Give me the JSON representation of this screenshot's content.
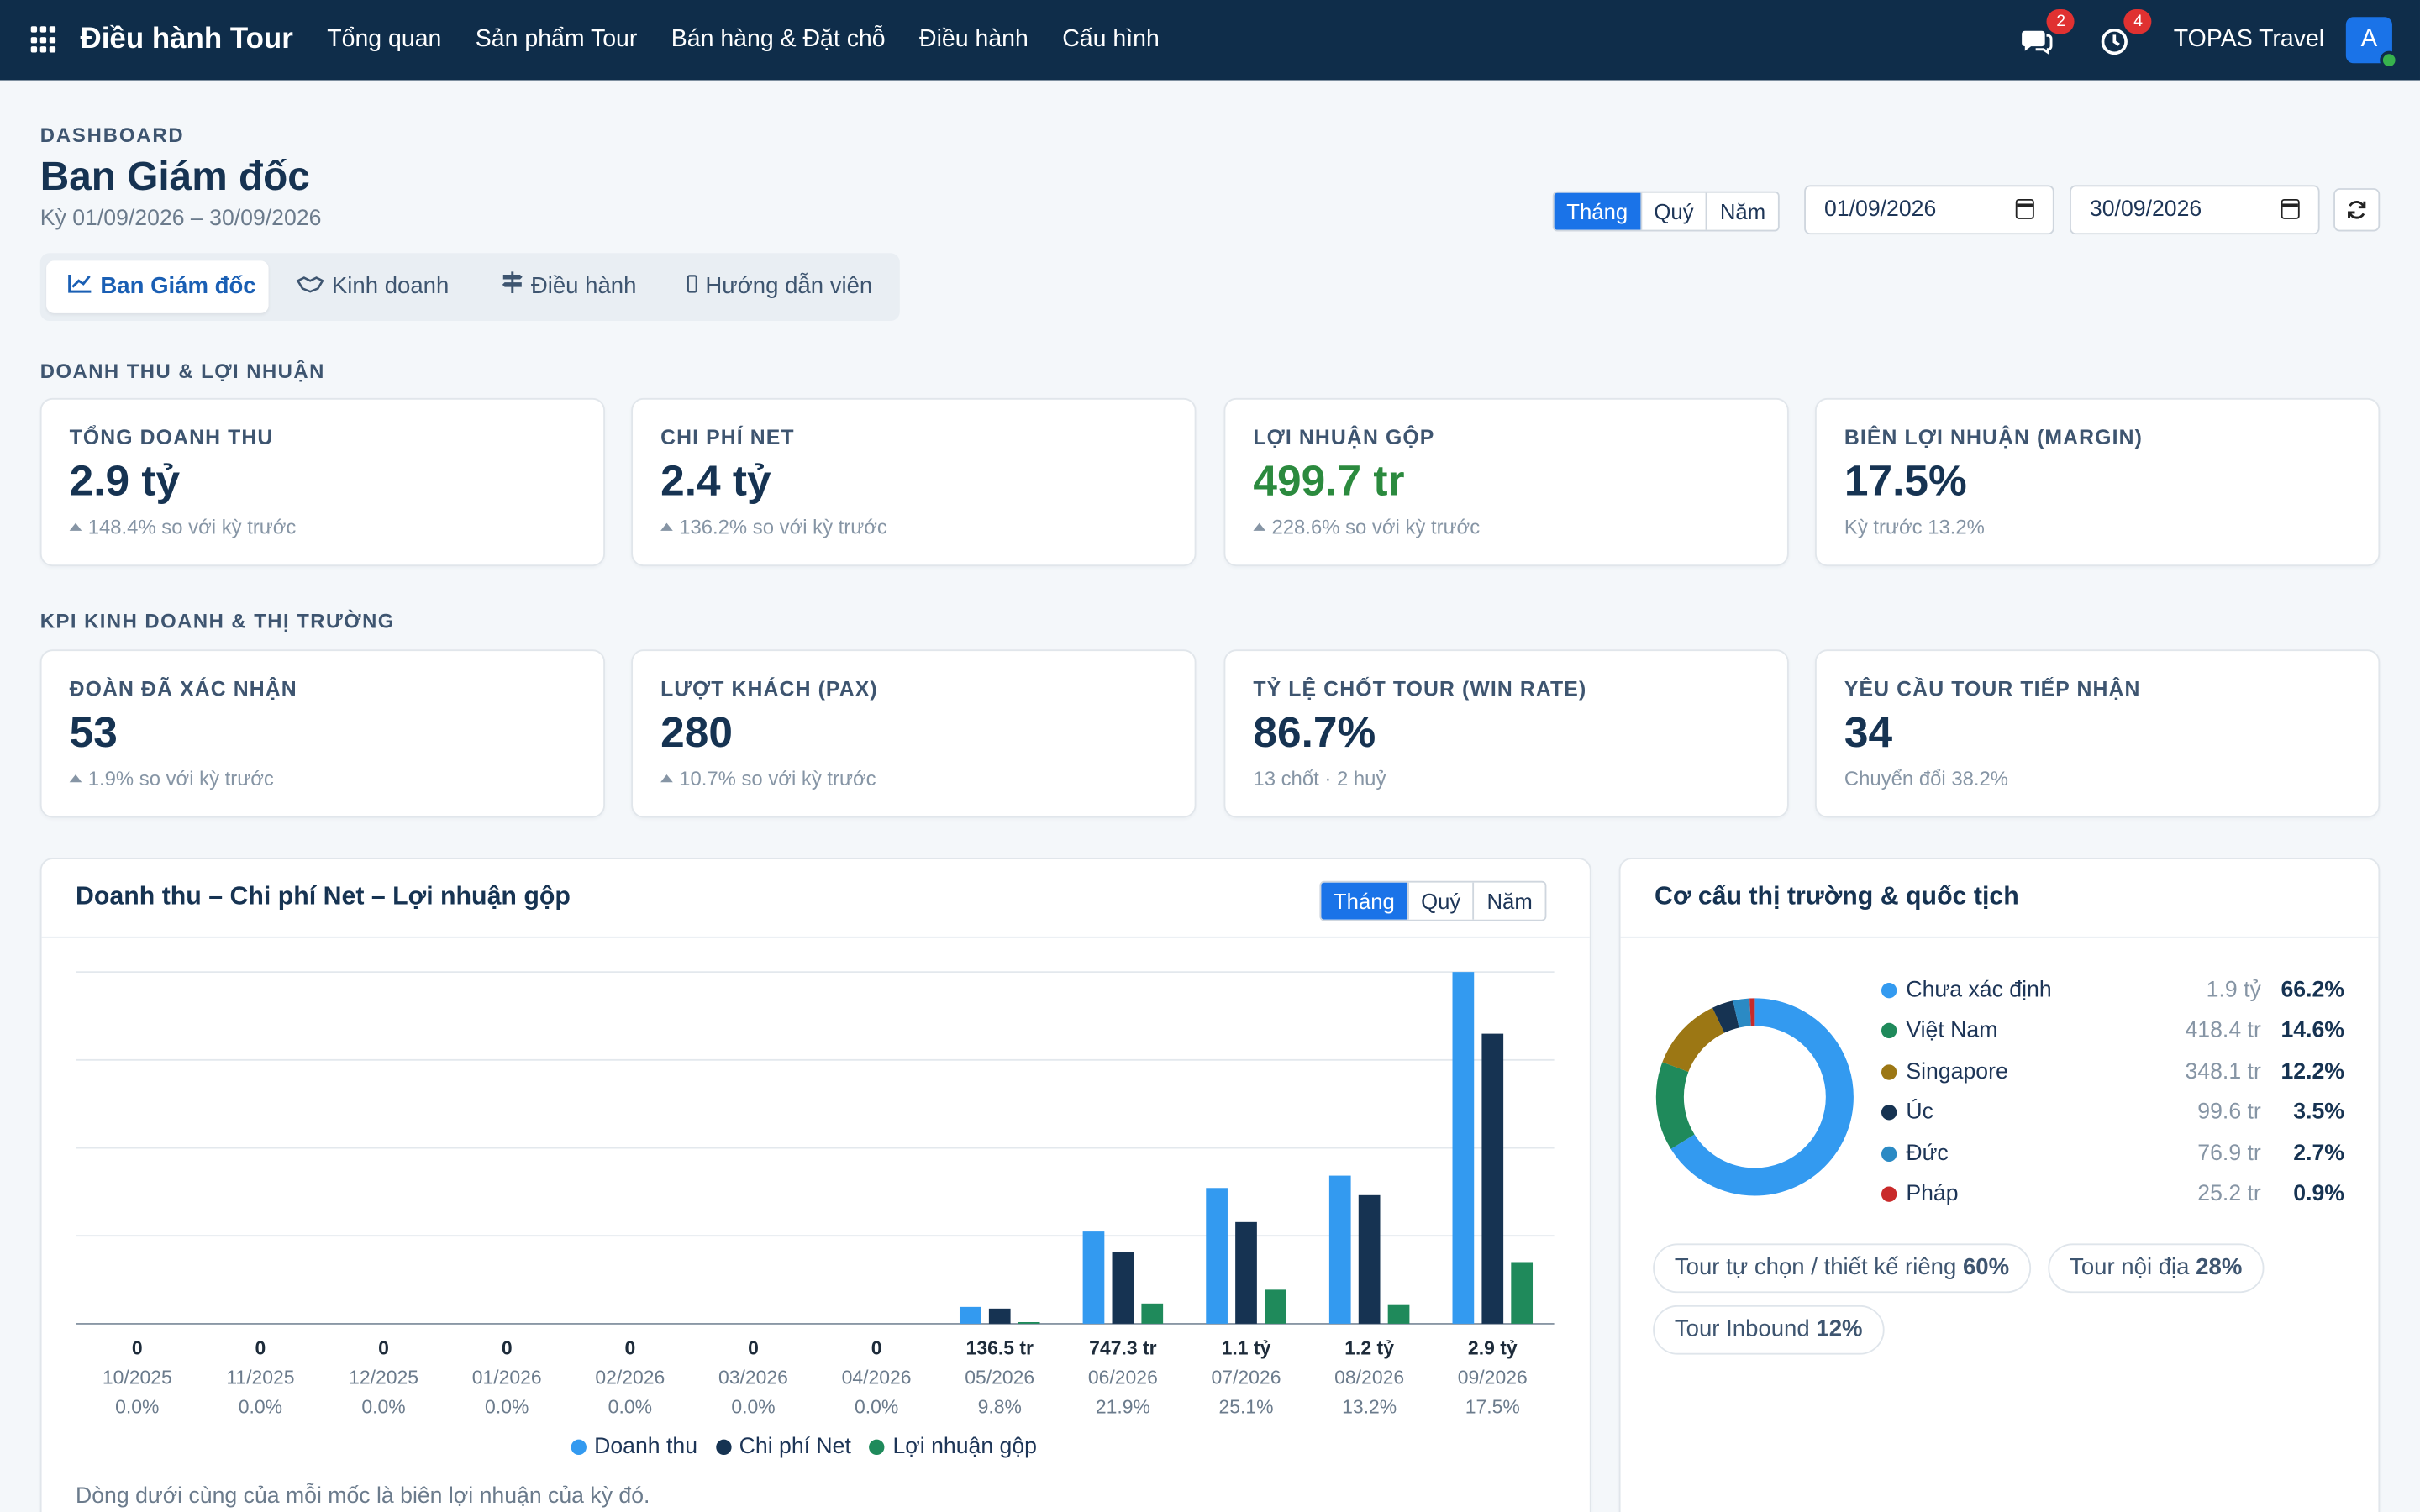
{
  "app": {
    "title": "Điều hành Tour",
    "nav": [
      "Tổng quan",
      "Sản phẩm Tour",
      "Bán hàng & Đặt chỗ",
      "Điều hành",
      "Cấu hình"
    ],
    "chat_badge": "2",
    "activity_badge": "4",
    "company": "TOPAS Travel",
    "avatar_letter": "A"
  },
  "header": {
    "eyebrow": "DASHBOARD",
    "title": "Ban Giám đốc",
    "period": "Kỳ 01/09/2026 – 30/09/2026",
    "granularity": [
      "Tháng",
      "Quý",
      "Năm"
    ],
    "granularity_active": "Tháng",
    "date_from": "01/09/2026",
    "date_to": "30/09/2026"
  },
  "tabs": [
    {
      "label": "Ban Giám đốc",
      "icon": "chart-line-icon"
    },
    {
      "label": "Kinh doanh",
      "icon": "handshake-icon"
    },
    {
      "label": "Điều hành",
      "icon": "signpost-icon"
    },
    {
      "label": "Hướng dẫn viên",
      "icon": "phone-icon"
    }
  ],
  "sections": {
    "revenue": "DOANH THU & LỢI NHUẬN",
    "kpi": "KPI KINH DOANH & THỊ TRƯỜNG"
  },
  "revenue_cards": [
    {
      "label": "TỔNG DOANH THU",
      "value": "2.9 tỷ",
      "sub": "148.4% so với kỳ trước",
      "trend": "up"
    },
    {
      "label": "CHI PHÍ NET",
      "value": "2.4 tỷ",
      "sub": "136.2% so với kỳ trước",
      "trend": "down"
    },
    {
      "label": "LỢI NHUẬN GỘP",
      "value": "499.7 tr",
      "sub": "228.6% so với kỳ trước",
      "trend": "up"
    },
    {
      "label": "BIÊN LỢI NHUẬN (MARGIN)",
      "value": "17.5%",
      "sub": "Kỳ trước 13.2%",
      "trend": "none"
    }
  ],
  "kpi_cards": [
    {
      "label": "ĐOÀN ĐÃ XÁC NHẬN",
      "value": "53",
      "sub": "1.9% so với kỳ trước",
      "trend": "up"
    },
    {
      "label": "LƯỢT KHÁCH (PAX)",
      "value": "280",
      "sub": "10.7% so với kỳ trước",
      "trend": "up"
    },
    {
      "label": "TỶ LỆ CHỐT TOUR (WIN RATE)",
      "value": "86.7%",
      "sub": "13 chốt · 2 huỷ",
      "trend": "none"
    },
    {
      "label": "YÊU CẦU TOUR TIẾP NHẬN",
      "value": "34",
      "sub": "Chuyển đổi 38.2%",
      "trend": "none"
    }
  ],
  "revenue_panel": {
    "title": "Doanh thu – Chi phí Net – Lợi nhuận gộp",
    "granularity": [
      "Tháng",
      "Quý",
      "Năm"
    ],
    "footnote": "Dòng dưới cùng của mỗi mốc là biên lợi nhuận của kỳ đó."
  },
  "market_panel": {
    "title": "Cơ cấu thị trường & quốc tịch",
    "markets": [
      {
        "name": "Chưa xác định",
        "amount": "1.9 tỷ",
        "pct": "66.2%",
        "share": 66.2,
        "color": "#339af0"
      },
      {
        "name": "Việt Nam",
        "amount": "418.4 tr",
        "pct": "14.6%",
        "share": 14.6,
        "color": "#1f8a5b"
      },
      {
        "name": "Singapore",
        "amount": "348.1 tr",
        "pct": "12.2%",
        "share": 12.2,
        "color": "#9c7714"
      },
      {
        "name": "Úc",
        "amount": "99.6 tr",
        "pct": "3.5%",
        "share": 3.5,
        "color": "#163352"
      },
      {
        "name": "Đức",
        "amount": "76.9 tr",
        "pct": "2.7%",
        "share": 2.7,
        "color": "#2b8ac4"
      },
      {
        "name": "Pháp",
        "amount": "25.2 tr",
        "pct": "0.9%",
        "share": 0.9,
        "color": "#c92a2a"
      }
    ],
    "pills": [
      {
        "label": "Tour tự chọn / thiết kế riêng",
        "pct": "60%"
      },
      {
        "label": "Tour nội địa",
        "pct": "28%"
      },
      {
        "label": "Tour Inbound",
        "pct": "12%"
      }
    ]
  },
  "chart_data": {
    "type": "bar",
    "categories": [
      "10/2025",
      "11/2025",
      "12/2025",
      "01/2026",
      "02/2026",
      "03/2026",
      "04/2026",
      "05/2026",
      "06/2026",
      "07/2026",
      "08/2026",
      "09/2026"
    ],
    "revenue_labels": [
      "0",
      "0",
      "0",
      "0",
      "0",
      "0",
      "0",
      "136.5 tr",
      "747.3 tr",
      "1.1 tỷ",
      "1.2 tỷ",
      "2.9 tỷ"
    ],
    "margin_labels": [
      "0.0%",
      "0.0%",
      "0.0%",
      "0.0%",
      "0.0%",
      "0.0%",
      "0.0%",
      "9.8%",
      "21.9%",
      "25.1%",
      "13.2%",
      "17.5%"
    ],
    "series": [
      {
        "name": "Doanh thu",
        "color": "#339af0",
        "values": [
          0,
          0,
          0,
          0,
          0,
          0,
          0,
          136.5,
          747.3,
          1100,
          1200,
          2850
        ]
      },
      {
        "name": "Chi phí Net",
        "color": "#163352",
        "values": [
          0,
          0,
          0,
          0,
          0,
          0,
          0,
          123,
          583,
          824,
          1042,
          2350
        ]
      },
      {
        "name": "Lợi nhuận gộp",
        "color": "#1f8a5b",
        "values": [
          0,
          0,
          0,
          0,
          0,
          0,
          0,
          13,
          164,
          276,
          158,
          499.7
        ]
      }
    ],
    "ylim": [
      0,
      2850
    ],
    "grid": true,
    "legend": "bottom"
  }
}
